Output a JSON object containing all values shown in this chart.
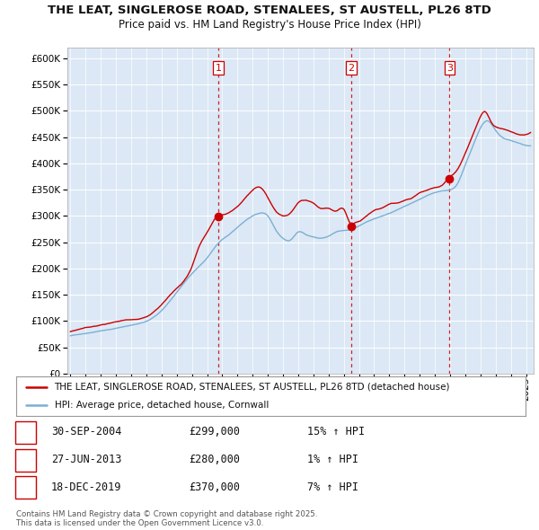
{
  "title": "THE LEAT, SINGLEROSE ROAD, STENALEES, ST AUSTELL, PL26 8TD",
  "subtitle": "Price paid vs. HM Land Registry's House Price Index (HPI)",
  "ylim": [
    0,
    620000
  ],
  "yticks": [
    0,
    50000,
    100000,
    150000,
    200000,
    250000,
    300000,
    350000,
    400000,
    450000,
    500000,
    550000,
    600000
  ],
  "xlim_start": 1994.8,
  "xlim_end": 2025.5,
  "background_color": "#ffffff",
  "plot_bg_color": "#dce8f5",
  "grid_color": "#ffffff",
  "hpi_line_color": "#7bafd4",
  "sale_line_color": "#cc0000",
  "vline_color": "#cc0000",
  "sale_dates": [
    2004.75,
    2013.49,
    2019.96
  ],
  "sale_prices": [
    299000,
    280000,
    370000
  ],
  "sale_labels": [
    "1",
    "2",
    "3"
  ],
  "legend_sale_label": "THE LEAT, SINGLEROSE ROAD, STENALEES, ST AUSTELL, PL26 8TD (detached house)",
  "legend_hpi_label": "HPI: Average price, detached house, Cornwall",
  "table_entries": [
    {
      "num": "1",
      "date": "30-SEP-2004",
      "price": "£299,000",
      "change": "15% ↑ HPI"
    },
    {
      "num": "2",
      "date": "27-JUN-2013",
      "price": "£280,000",
      "change": "1% ↑ HPI"
    },
    {
      "num": "3",
      "date": "18-DEC-2019",
      "price": "£370,000",
      "change": "7% ↑ HPI"
    }
  ],
  "footnote": "Contains HM Land Registry data © Crown copyright and database right 2025.\nThis data is licensed under the Open Government Licence v3.0.",
  "title_fontsize": 9.5,
  "subtitle_fontsize": 8.5,
  "tick_fontsize": 7.5,
  "legend_fontsize": 7.5,
  "table_fontsize": 8.5
}
